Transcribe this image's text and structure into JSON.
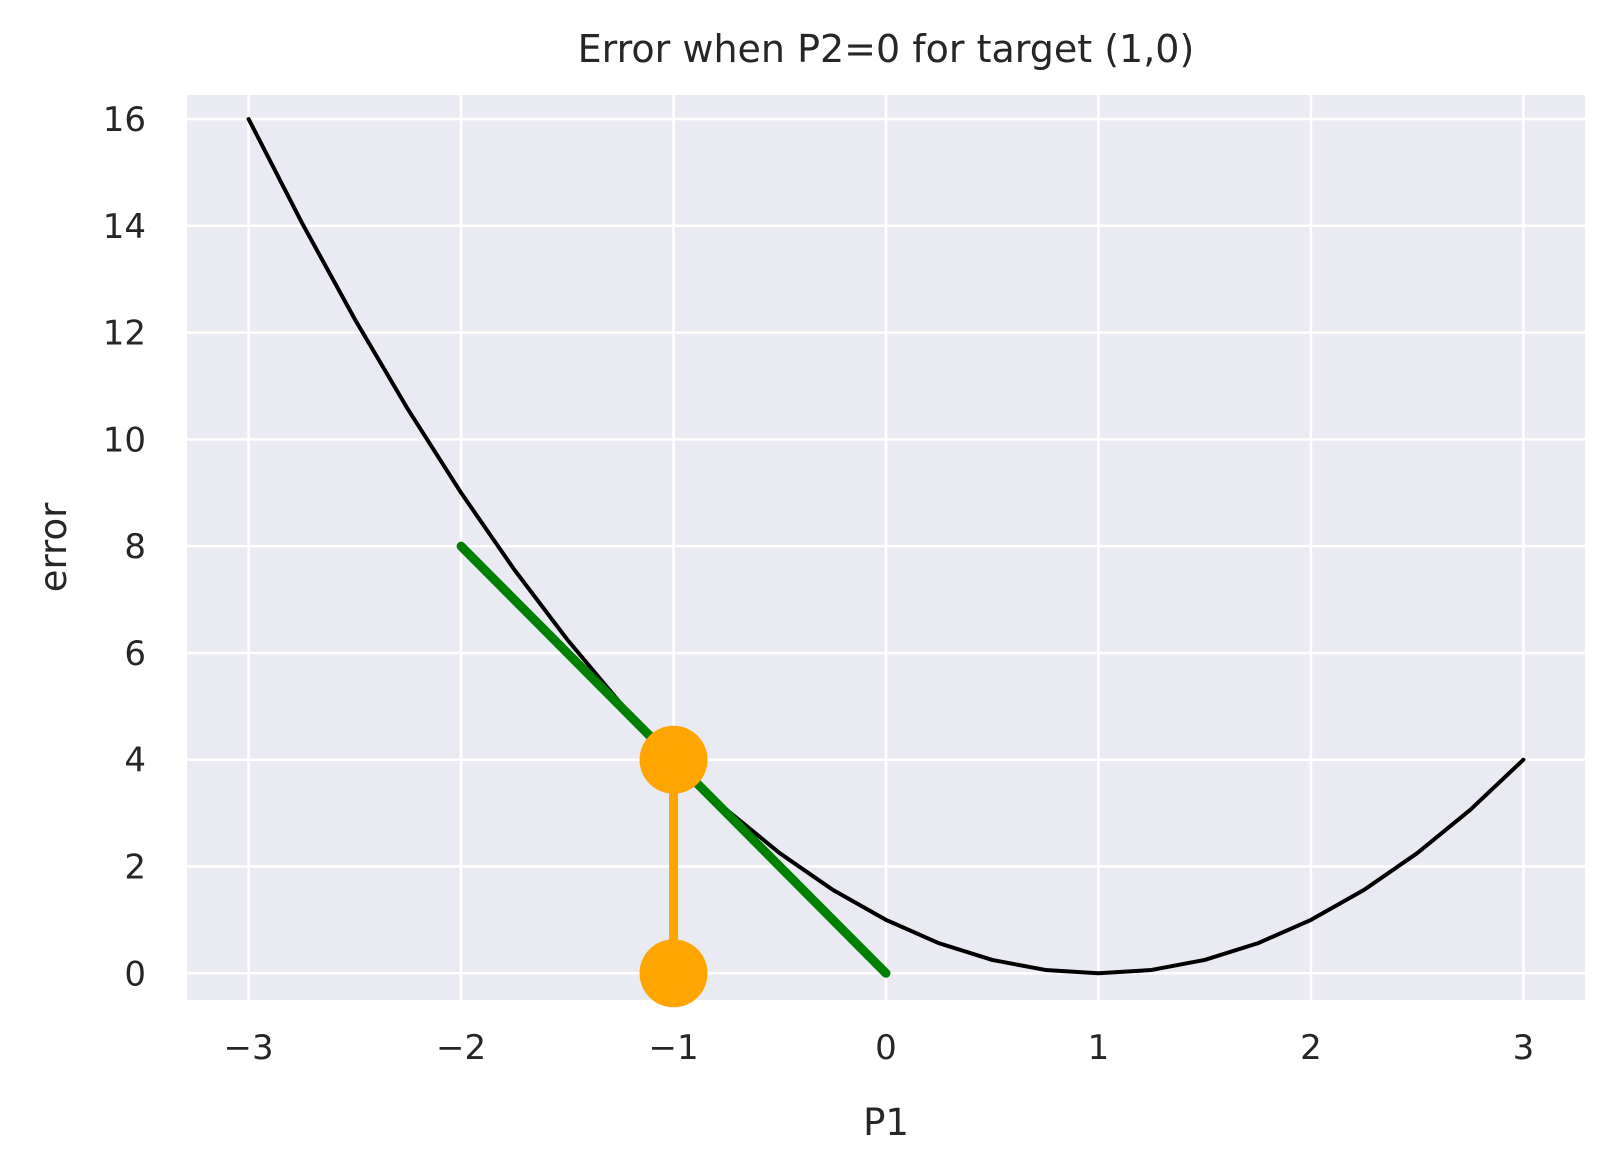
{
  "chart_data": {
    "type": "line",
    "title": "Error when P2=0 for target (1,0)",
    "xlabel": "P1",
    "ylabel": "error",
    "xlim": [
      -3.29,
      3.29
    ],
    "ylim": [
      -0.5,
      16.45
    ],
    "xticks": [
      -3,
      -2,
      -1,
      0,
      1,
      2,
      3
    ],
    "xtick_labels": [
      "−3",
      "−2",
      "−1",
      "0",
      "1",
      "2",
      "3"
    ],
    "yticks": [
      0,
      2,
      4,
      6,
      8,
      10,
      12,
      14,
      16
    ],
    "ytick_labels": [
      "0",
      "2",
      "4",
      "6",
      "8",
      "10",
      "12",
      "14",
      "16"
    ],
    "grid": true,
    "legend": "none",
    "colors": {
      "background": "#EAEAF2",
      "grid": "#FFFFFF",
      "curve": "#000000",
      "tangent": "#008000",
      "marker": "#FFA500",
      "text": "#262626"
    },
    "series": [
      {
        "kind": "curve",
        "x": [
          -3,
          -2.75,
          -2.5,
          -2.25,
          -2,
          -1.75,
          -1.5,
          -1.25,
          -1,
          -0.75,
          -0.5,
          -0.25,
          0,
          0.25,
          0.5,
          0.75,
          1,
          1.25,
          1.5,
          1.75,
          2,
          2.25,
          2.5,
          2.75,
          3
        ],
        "y": [
          16,
          14.0625,
          12.25,
          10.5625,
          9,
          7.5625,
          6.25,
          5.0625,
          4,
          3.0625,
          2.25,
          1.5625,
          1,
          0.5625,
          0.25,
          0.0625,
          0,
          0.0625,
          0.25,
          0.5625,
          1,
          1.5625,
          2.25,
          3.0625,
          4
        ]
      },
      {
        "kind": "tangent",
        "x": [
          -2,
          0
        ],
        "y": [
          8,
          0
        ]
      },
      {
        "kind": "stem",
        "x": [
          -1,
          -1
        ],
        "y": [
          0,
          4
        ]
      }
    ]
  }
}
